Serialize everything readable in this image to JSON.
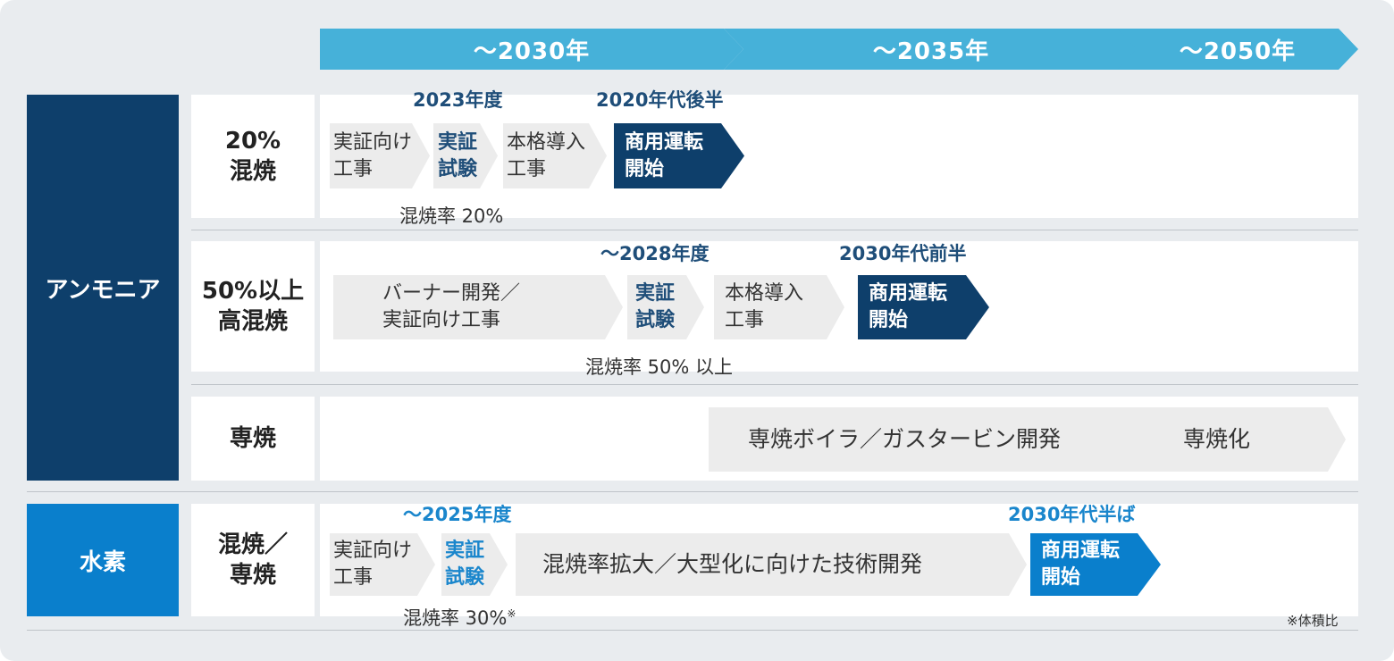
{
  "colors": {
    "navy": "#0e3f6b",
    "blue": "#0a7fcc",
    "timeline": "#46b1d9",
    "step_gray": "#ececec",
    "text_dark_blue": "#1f4e79",
    "text_light_blue": "#1a86cc"
  },
  "timeline": [
    "～2030年",
    "～2035年",
    "～2050年"
  ],
  "categories": {
    "ammonia": "アンモニア",
    "hydrogen": "水素"
  },
  "rows": {
    "r20": {
      "label": "20%\n混焼",
      "dates": [
        "2023年度",
        "2020年代後半"
      ],
      "steps": [
        "実証向け\n工事",
        "実証\n試験",
        "本格導入\n工事"
      ],
      "milestone": "商用運転\n開始",
      "rate": "混焼率 20%"
    },
    "r50": {
      "label": "50%以上\n高混焼",
      "dates": [
        "～2028年度",
        "2030年代前半"
      ],
      "steps": [
        "バーナー開発／\n実証向け工事",
        "実証\n試験",
        "本格導入\n工事"
      ],
      "milestone": "商用運転\n開始",
      "rate": "混焼率 50% 以上"
    },
    "dedicated": {
      "label": "専焼",
      "bar_text": "専焼ボイラ／ガスタービン開発",
      "bar_end": "専焼化"
    },
    "hydrogen": {
      "label": "混焼／\n専焼",
      "dates": [
        "～2025年度",
        "2030年代半ば"
      ],
      "steps": [
        "実証向け\n工事",
        "実証\n試験",
        "混焼率拡大／大型化に向けた技術開発"
      ],
      "milestone": "商用運転\n開始",
      "rate": "混焼率 30%",
      "rate_mark": "※"
    }
  },
  "footnote": "※体積比"
}
